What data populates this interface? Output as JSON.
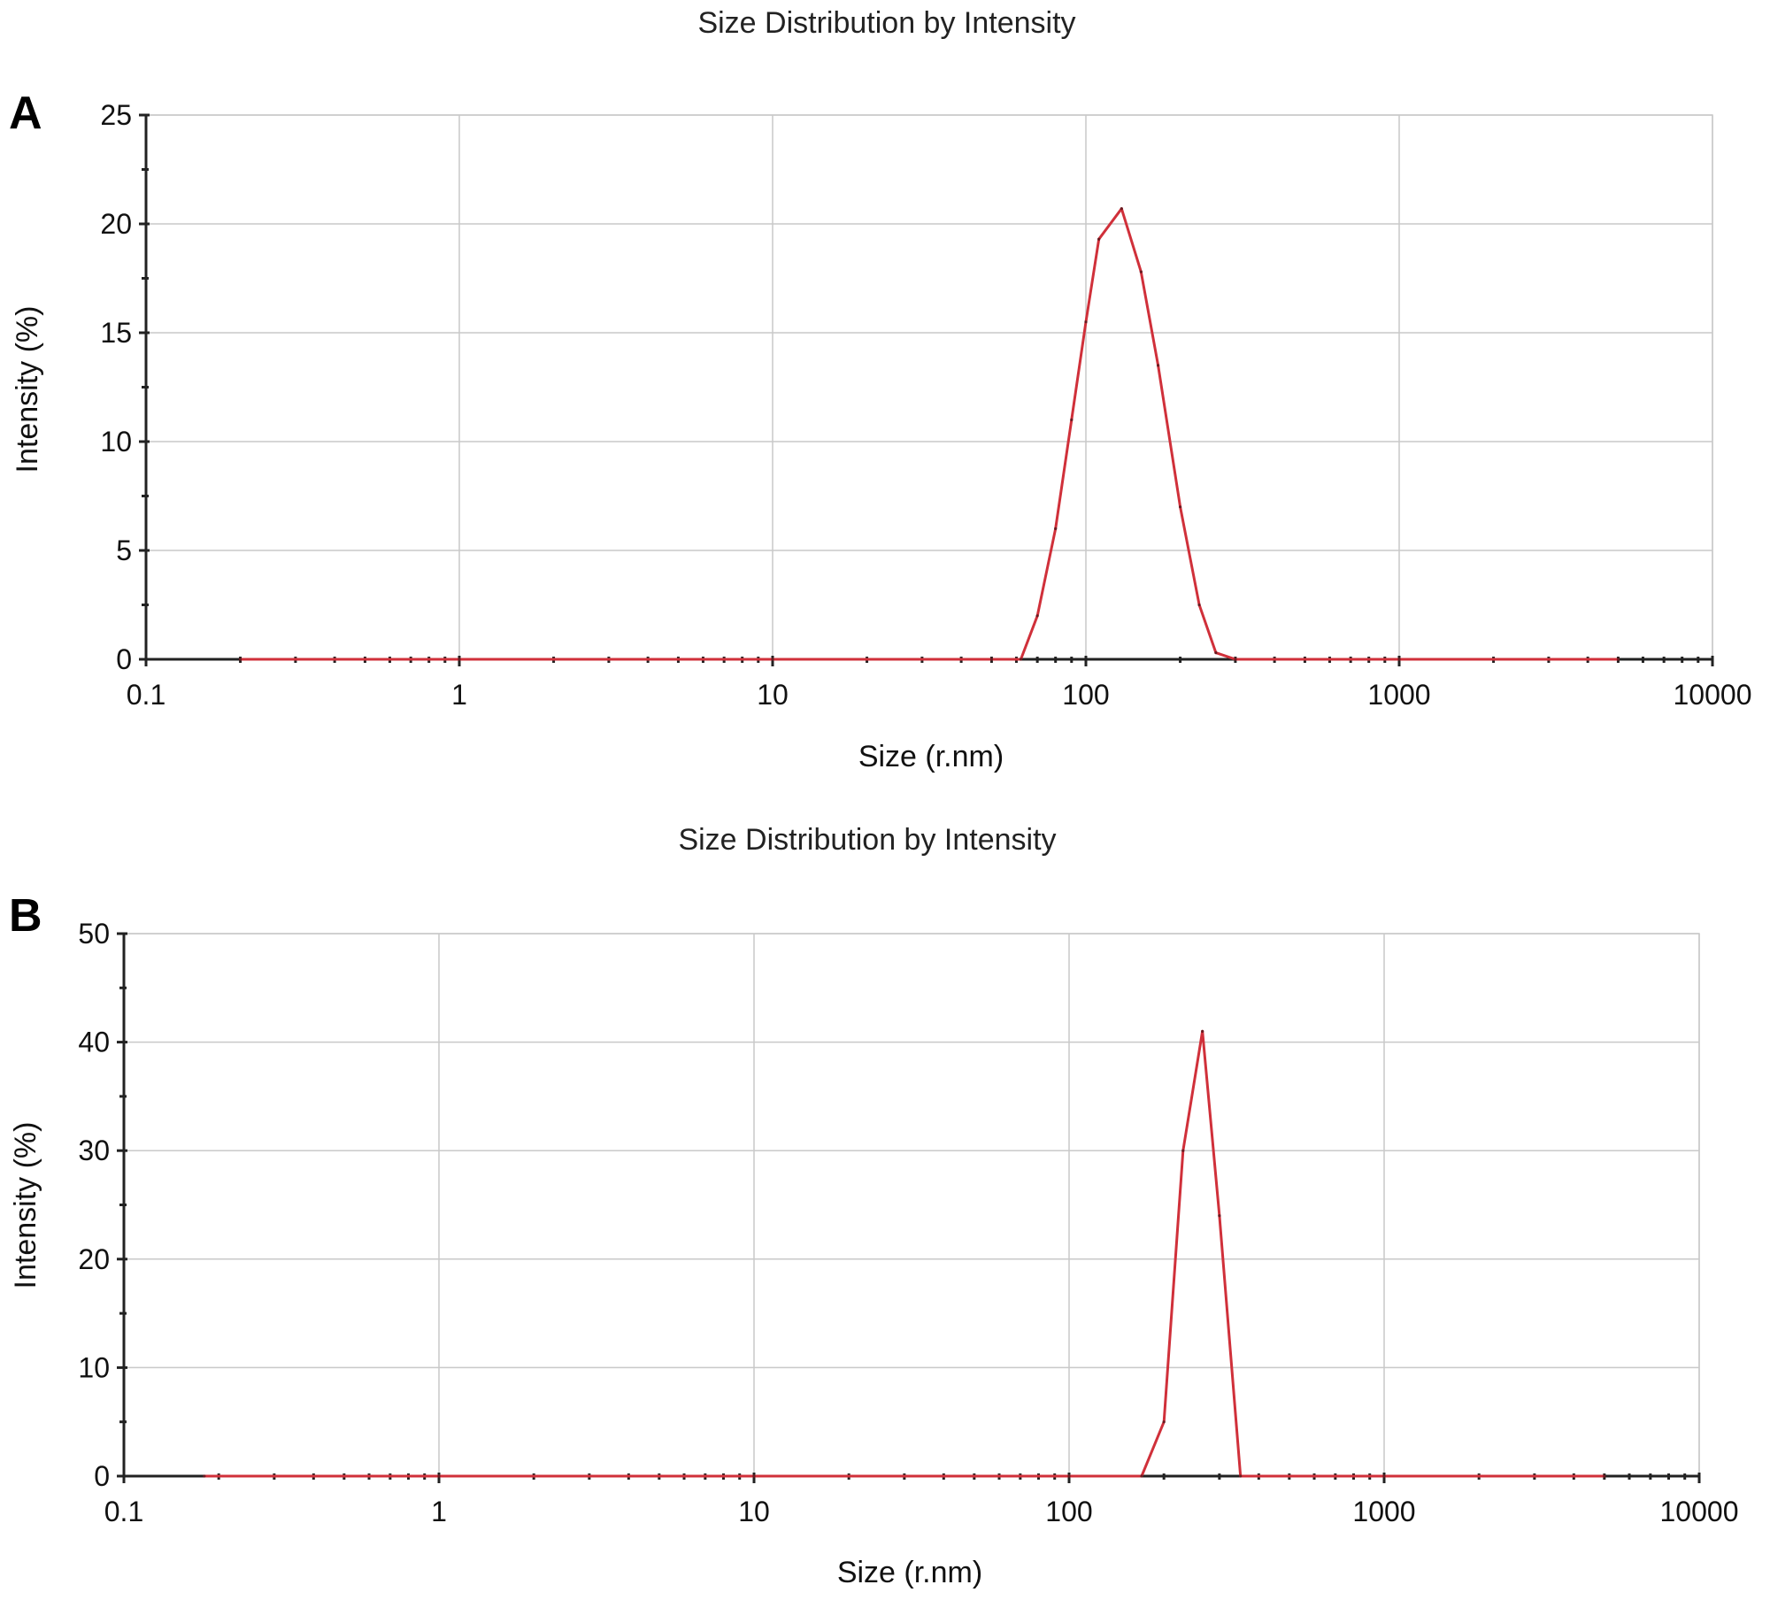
{
  "chart_data": [
    {
      "panel": "A",
      "type": "line",
      "title": "Size Distribution by Intensity",
      "xlabel": "Size (r.nm)",
      "ylabel": "Intensity (%)",
      "xscale": "log",
      "xlim": [
        0.1,
        10000
      ],
      "ylim": [
        0,
        25
      ],
      "xticks": [
        "0.1",
        "1",
        "10",
        "100",
        "1000",
        "10000"
      ],
      "xtick_values": [
        0.1,
        1,
        10,
        100,
        1000,
        10000
      ],
      "yticks": [
        "0",
        "5",
        "10",
        "15",
        "20",
        "25"
      ],
      "ytick_values": [
        0,
        5,
        10,
        15,
        20,
        25
      ],
      "grid": true,
      "color": "#d0303a",
      "x": [
        0.2,
        1,
        10,
        50,
        62,
        70,
        80,
        90,
        100,
        110,
        130,
        150,
        170,
        200,
        230,
        260,
        300,
        1000,
        5000
      ],
      "y": [
        0,
        0,
        0,
        0,
        0,
        2,
        6,
        11,
        15.5,
        19.3,
        20.7,
        17.8,
        13.5,
        7,
        2.5,
        0.3,
        0,
        0,
        0
      ]
    },
    {
      "panel": "B",
      "type": "line",
      "title": "Size Distribution by Intensity",
      "xlabel": "Size (r.nm)",
      "ylabel": "Intensity (%)",
      "xscale": "log",
      "xlim": [
        0.1,
        10000
      ],
      "ylim": [
        0,
        50
      ],
      "xticks": [
        "0.1",
        "1",
        "10",
        "100",
        "1000",
        "10000"
      ],
      "xtick_values": [
        0.1,
        1,
        10,
        100,
        1000,
        10000
      ],
      "yticks": [
        "0",
        "10",
        "20",
        "30",
        "40",
        "50"
      ],
      "ytick_values": [
        0,
        10,
        20,
        30,
        40,
        50
      ],
      "grid": true,
      "color": "#d0303a",
      "x": [
        0.18,
        1,
        10,
        100,
        170,
        200,
        230,
        265,
        300,
        350,
        1000,
        5000
      ],
      "y": [
        0,
        0,
        0,
        0,
        0,
        5,
        30,
        41,
        24,
        0,
        0,
        0
      ]
    }
  ]
}
